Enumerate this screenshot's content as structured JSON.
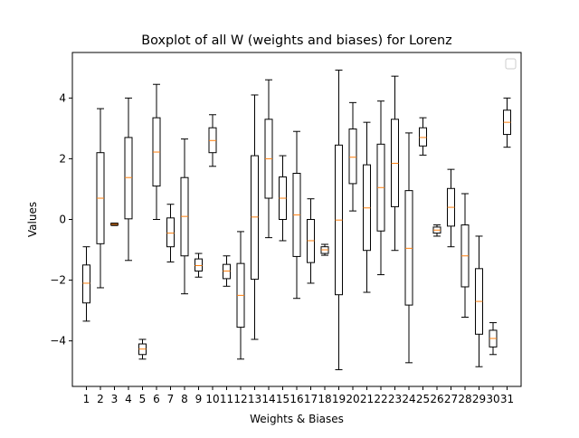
{
  "chart_data": {
    "type": "boxplot",
    "title": "Boxplot of all W (weights and biases) for Lorenz",
    "xlabel": "Weights & Biases",
    "ylabel": "Values",
    "ylim": [
      -5.5,
      5.5
    ],
    "yticks": [
      -4,
      -2,
      0,
      2,
      4
    ],
    "legend": {
      "placement": "top-right",
      "entries": []
    },
    "grid": false,
    "colors": {
      "box": "#000000",
      "median": "#ff7f0e"
    },
    "categories": [
      "1",
      "2",
      "3",
      "4",
      "5",
      "6",
      "7",
      "8",
      "9",
      "10",
      "11",
      "12",
      "13",
      "14",
      "15",
      "16",
      "17",
      "18",
      "19",
      "20",
      "21",
      "22",
      "23",
      "24",
      "25",
      "26",
      "27",
      "28",
      "29",
      "30",
      "31"
    ],
    "boxes": [
      {
        "whislo": -3.35,
        "q1": -2.75,
        "med": -2.1,
        "q3": -1.5,
        "whishi": -0.9
      },
      {
        "whislo": -2.25,
        "q1": -0.8,
        "med": 0.7,
        "q3": 2.2,
        "whishi": 3.65
      },
      {
        "whislo": -0.2,
        "q1": -0.18,
        "med": -0.16,
        "q3": -0.13,
        "whishi": -0.12
      },
      {
        "whislo": -1.35,
        "q1": 0.02,
        "med": 1.38,
        "q3": 2.7,
        "whishi": 4.0
      },
      {
        "whislo": -4.6,
        "q1": -4.45,
        "med": -4.27,
        "q3": -4.1,
        "whishi": -3.95
      },
      {
        "whislo": 0.0,
        "q1": 1.1,
        "med": 2.22,
        "q3": 3.35,
        "whishi": 4.45
      },
      {
        "whislo": -1.4,
        "q1": -0.9,
        "med": -0.45,
        "q3": 0.05,
        "whishi": 0.5
      },
      {
        "whislo": -2.45,
        "q1": -1.2,
        "med": 0.1,
        "q3": 1.38,
        "whishi": 2.65
      },
      {
        "whislo": -1.9,
        "q1": -1.7,
        "med": -1.52,
        "q3": -1.3,
        "whishi": -1.12
      },
      {
        "whislo": 1.75,
        "q1": 2.2,
        "med": 2.6,
        "q3": 3.02,
        "whishi": 3.45
      },
      {
        "whislo": -2.2,
        "q1": -1.95,
        "med": -1.7,
        "q3": -1.48,
        "whishi": -1.2
      },
      {
        "whislo": -4.6,
        "q1": -3.55,
        "med": -2.5,
        "q3": -1.45,
        "whishi": -0.4
      },
      {
        "whislo": -3.95,
        "q1": -1.97,
        "med": 0.08,
        "q3": 2.1,
        "whishi": 4.1
      },
      {
        "whislo": -0.6,
        "q1": 0.7,
        "med": 2.0,
        "q3": 3.3,
        "whishi": 4.6
      },
      {
        "whislo": -0.7,
        "q1": 0.0,
        "med": 0.7,
        "q3": 1.4,
        "whishi": 2.1
      },
      {
        "whislo": -2.6,
        "q1": -1.22,
        "med": 0.15,
        "q3": 1.52,
        "whishi": 2.9
      },
      {
        "whislo": -2.1,
        "q1": -1.42,
        "med": -0.7,
        "q3": 0.0,
        "whishi": 0.68
      },
      {
        "whislo": -1.18,
        "q1": -1.12,
        "med": -1.0,
        "q3": -0.9,
        "whishi": -0.82
      },
      {
        "whislo": -4.95,
        "q1": -2.48,
        "med": -0.02,
        "q3": 2.45,
        "whishi": 4.92
      },
      {
        "whislo": 0.28,
        "q1": 1.18,
        "med": 2.05,
        "q3": 2.98,
        "whishi": 3.85
      },
      {
        "whislo": -2.4,
        "q1": -1.02,
        "med": 0.38,
        "q3": 1.8,
        "whishi": 3.2
      },
      {
        "whislo": -1.82,
        "q1": -0.38,
        "med": 1.05,
        "q3": 2.48,
        "whishi": 3.9
      },
      {
        "whislo": -1.02,
        "q1": 0.42,
        "med": 1.85,
        "q3": 3.3,
        "whishi": 4.72
      },
      {
        "whislo": -4.72,
        "q1": -2.82,
        "med": -0.95,
        "q3": 0.95,
        "whishi": 2.85
      },
      {
        "whislo": 2.12,
        "q1": 2.42,
        "med": 2.7,
        "q3": 3.02,
        "whishi": 3.35
      },
      {
        "whislo": -0.55,
        "q1": -0.45,
        "med": -0.35,
        "q3": -0.25,
        "whishi": -0.18
      },
      {
        "whislo": -0.9,
        "q1": -0.22,
        "med": 0.4,
        "q3": 1.02,
        "whishi": 1.65
      },
      {
        "whislo": -3.22,
        "q1": -2.22,
        "med": -1.2,
        "q3": -0.18,
        "whishi": 0.85
      },
      {
        "whislo": -4.85,
        "q1": -3.78,
        "med": -2.7,
        "q3": -1.62,
        "whishi": -0.55
      },
      {
        "whislo": -4.45,
        "q1": -4.2,
        "med": -3.92,
        "q3": -3.65,
        "whishi": -3.4
      },
      {
        "whislo": 2.38,
        "q1": 2.8,
        "med": 3.2,
        "q3": 3.6,
        "whishi": 4.0
      }
    ]
  }
}
